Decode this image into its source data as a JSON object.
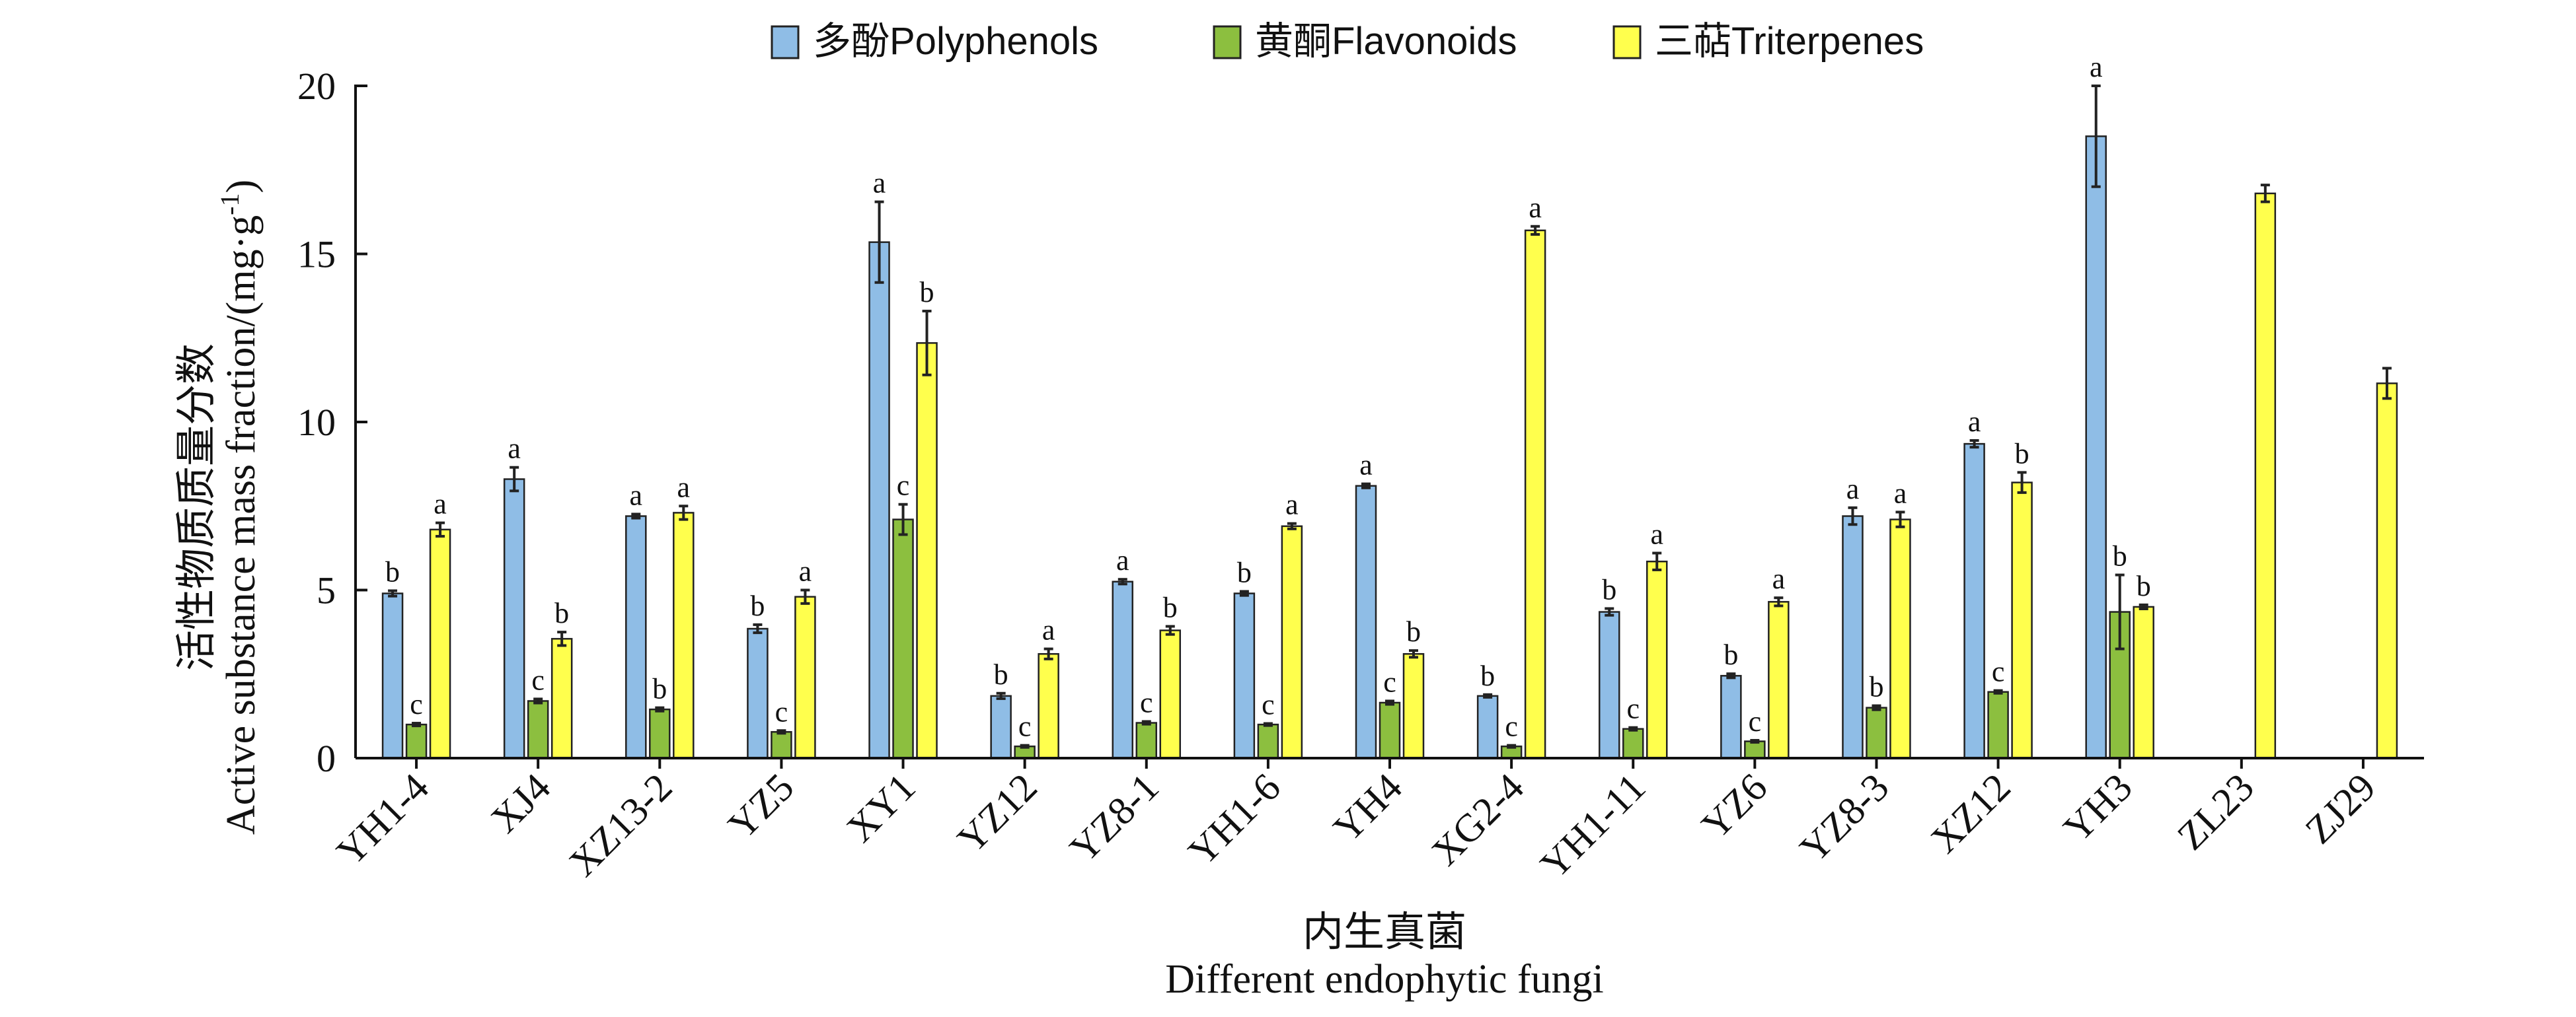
{
  "chart_data": {
    "type": "bar",
    "ylabel_cn": "活性物质质量分数",
    "ylabel_en": "Active substance mass fraction/(mg·g",
    "ylabel_sup": "-1",
    "ylabel_close": ")",
    "xlabel_cn": "内生真菌",
    "xlabel_en": "Different endophytic fungi",
    "ylim": [
      0,
      20
    ],
    "yticks": [
      0,
      5,
      10,
      15,
      20
    ],
    "legend_position": "top-center",
    "categories": [
      "YH1-4",
      "XJ4",
      "XZ13-2",
      "YZ5",
      "XY1",
      "YZ12",
      "YZ8-1",
      "YH1-6",
      "YH4",
      "XG2-4",
      "YH1-11",
      "YZ6",
      "YZ8-3",
      "XZ12",
      "YH3",
      "ZL23",
      "ZJ29"
    ],
    "series": [
      {
        "name": "多酚Polyphenols",
        "color": "#8fbde6",
        "values": [
          4.9,
          8.3,
          7.2,
          3.85,
          15.35,
          1.85,
          5.25,
          4.9,
          8.1,
          1.85,
          4.35,
          2.45,
          7.2,
          9.35,
          18.5,
          null,
          null
        ],
        "errors": [
          0.08,
          0.35,
          0.06,
          0.12,
          1.2,
          0.08,
          0.07,
          0.06,
          0.06,
          0.04,
          0.1,
          0.06,
          0.25,
          0.1,
          1.5,
          null,
          null
        ],
        "labels": [
          "b",
          "a",
          "a",
          "b",
          "a",
          "b",
          "a",
          "b",
          "a",
          "b",
          "b",
          "b",
          "a",
          "a",
          "a",
          "",
          ""
        ]
      },
      {
        "name": "黄酮Flavonoids",
        "color": "#8cbf3f",
        "values": [
          1.0,
          1.7,
          1.45,
          0.78,
          7.1,
          0.35,
          1.05,
          1.0,
          1.65,
          0.35,
          0.87,
          0.5,
          1.5,
          1.97,
          4.35,
          null,
          null
        ],
        "errors": [
          0.04,
          0.06,
          0.05,
          0.04,
          0.45,
          0.03,
          0.04,
          0.03,
          0.05,
          0.03,
          0.04,
          0.03,
          0.06,
          0.04,
          1.1,
          null,
          null
        ],
        "labels": [
          "c",
          "c",
          "b",
          "c",
          "c",
          "c",
          "c",
          "c",
          "c",
          "c",
          "c",
          "c",
          "b",
          "c",
          "b",
          "",
          ""
        ]
      },
      {
        "name": "三萜Triterpenes",
        "color": "#ffff4d",
        "values": [
          6.8,
          3.55,
          7.3,
          4.8,
          12.35,
          3.1,
          3.8,
          6.9,
          3.1,
          15.7,
          5.85,
          4.65,
          7.1,
          8.2,
          4.5,
          16.8,
          11.15
        ],
        "errors": [
          0.2,
          0.2,
          0.2,
          0.2,
          0.95,
          0.15,
          0.12,
          0.08,
          0.1,
          0.12,
          0.25,
          0.12,
          0.22,
          0.3,
          0.06,
          0.25,
          0.45
        ],
        "labels": [
          "a",
          "b",
          "a",
          "a",
          "b",
          "a",
          "b",
          "a",
          "b",
          "a",
          "a",
          "a",
          "a",
          "b",
          "b",
          "",
          ""
        ]
      }
    ]
  }
}
